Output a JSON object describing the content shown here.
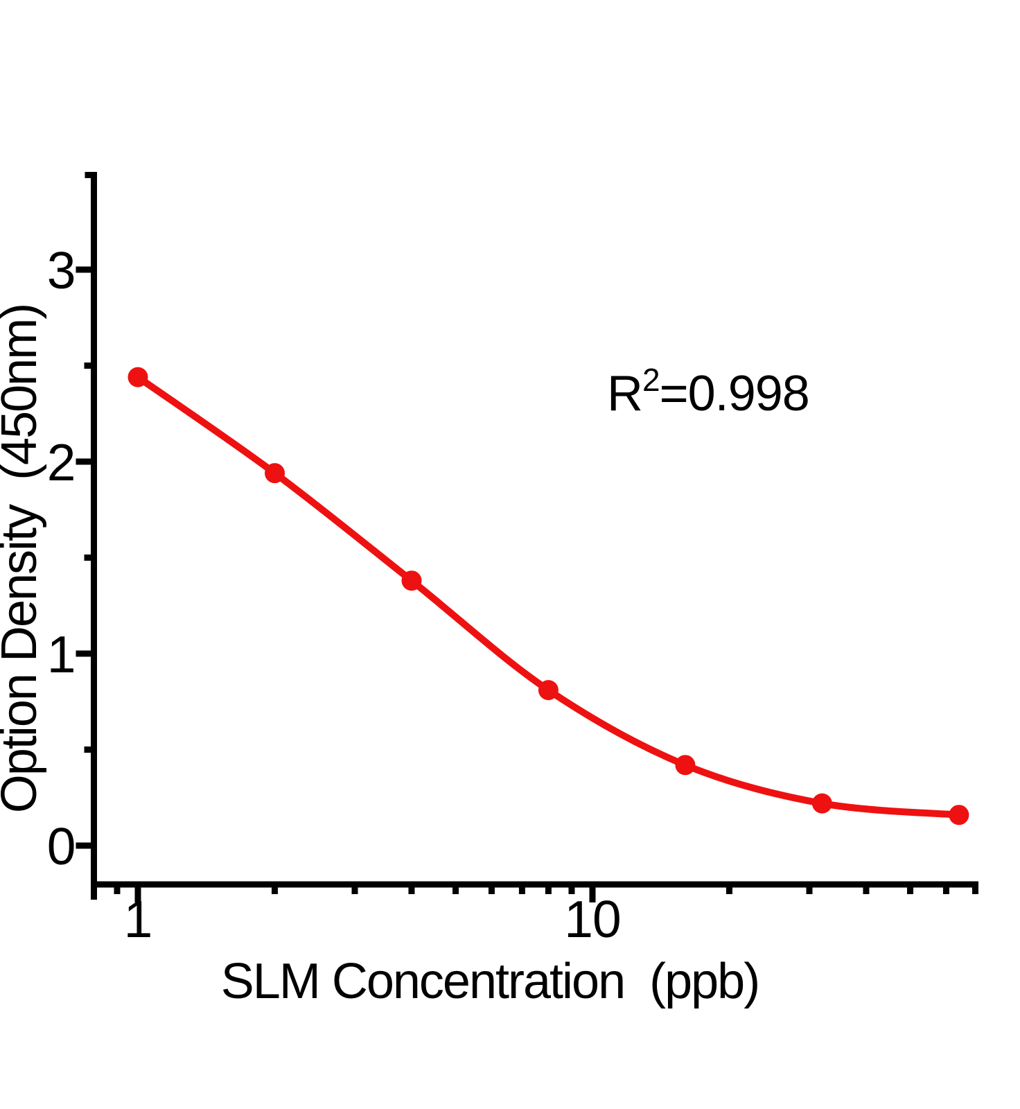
{
  "chart_data": {
    "type": "scatter",
    "subtype": "standard-curve-with-fit-line",
    "series": [
      {
        "name": "SLM standard curve",
        "x": [
          1,
          2,
          4,
          8,
          16,
          32,
          64
        ],
        "y": [
          2.44,
          1.94,
          1.38,
          0.81,
          0.42,
          0.22,
          0.16
        ]
      }
    ],
    "title": "",
    "xlabel": "SLM Concentration  (ppb)",
    "ylabel": "Option Density  (450nm)",
    "annotation": {
      "base": "R",
      "sup": "2",
      "rest": "=0.998"
    },
    "x_scale": "log",
    "y_scale": "linear",
    "xlim": [
      0.8,
      70
    ],
    "ylim": [
      -0.2,
      3.5
    ],
    "x_major_ticks": [
      1,
      10
    ],
    "x_major_tick_labels": [
      "1",
      "10"
    ],
    "x_minor_ticks": [
      0.9,
      2,
      3,
      4,
      5,
      6,
      7,
      8,
      9,
      20,
      30,
      40,
      50,
      60
    ],
    "y_major_ticks": [
      0,
      1,
      2,
      3
    ],
    "y_major_tick_labels": [
      "0",
      "1",
      "2",
      "3"
    ],
    "y_minor_ticks": [
      0.5,
      1.5,
      2.5
    ],
    "grid": false,
    "legend": false,
    "colors": {
      "curve": "#ee1111",
      "marker": "#ee1111",
      "axis": "#000000",
      "text": "#000000",
      "background": "#ffffff"
    }
  }
}
